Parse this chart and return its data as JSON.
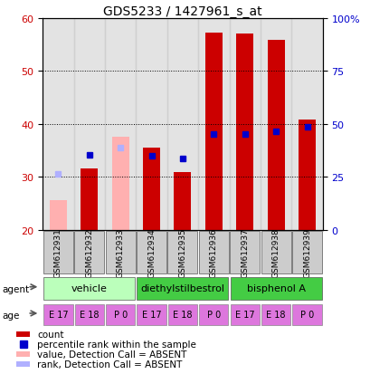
{
  "title": "GDS5233 / 1427961_s_at",
  "samples": [
    "GSM612931",
    "GSM612932",
    "GSM612933",
    "GSM612934",
    "GSM612935",
    "GSM612936",
    "GSM612937",
    "GSM612938",
    "GSM612939"
  ],
  "count_values": [
    null,
    31.5,
    null,
    35.5,
    30.8,
    57.2,
    57.0,
    55.8,
    40.8
  ],
  "rank_values": [
    null,
    34.2,
    null,
    34.0,
    33.5,
    38.0,
    38.0,
    38.5,
    39.5
  ],
  "absent_value_values": [
    25.5,
    null,
    37.5,
    null,
    null,
    null,
    null,
    null,
    null
  ],
  "absent_rank_values": [
    30.5,
    null,
    35.5,
    null,
    null,
    null,
    null,
    null,
    null
  ],
  "y_min": 20,
  "y_max": 60,
  "y_ticks_left": [
    20,
    30,
    40,
    50,
    60
  ],
  "y_ticks_right": [
    0,
    25,
    50,
    75,
    100
  ],
  "color_count": "#cc0000",
  "color_rank": "#0000cc",
  "color_absent_value": "#ffb0b0",
  "color_absent_rank": "#b0b0ff",
  "age_labels": [
    "E 17",
    "E 18",
    "P 0",
    "E 17",
    "E 18",
    "P 0",
    "E 17",
    "E 18",
    "P 0"
  ],
  "age_color": "#dd77dd",
  "bar_width": 0.55
}
